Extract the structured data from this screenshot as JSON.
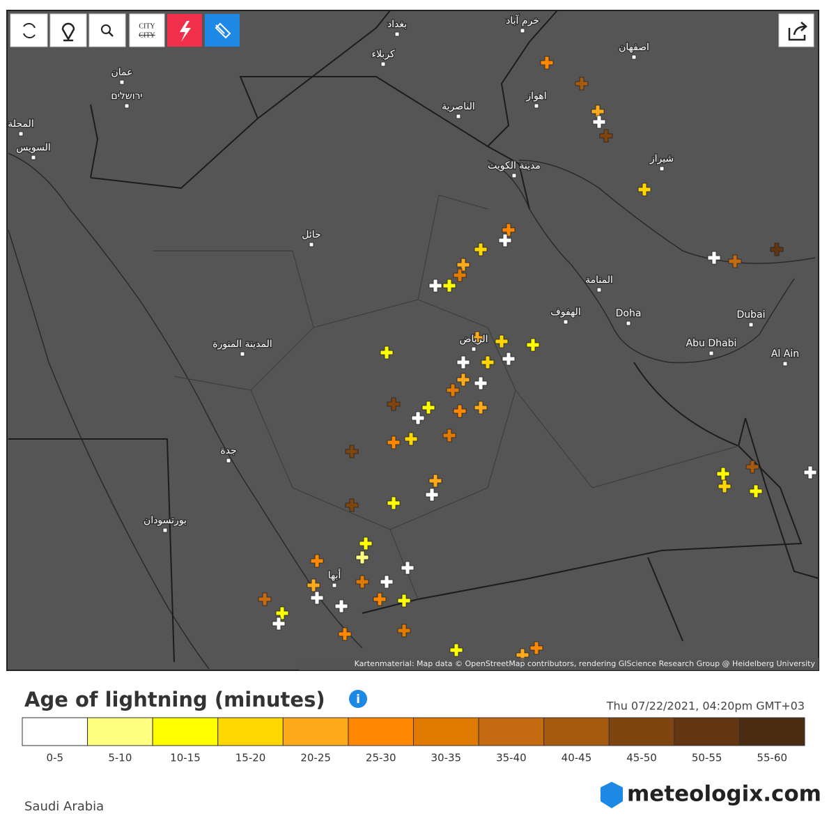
{
  "toolbar": {
    "city_label": "CITY"
  },
  "map": {
    "labels": [
      "بغداد",
      "كربلاء",
      "عمان",
      "ירושלים",
      "الناصرية",
      "خرم آباد",
      "اصفهان",
      "اهواز",
      "شيراز",
      "مدينة الكويت",
      "حائل",
      "المنامة",
      "الهفوف",
      "Doha",
      "Dubai",
      "Abu Dhabi",
      "Al Ain",
      "الرياض",
      "المدينة المنورة",
      "جدة",
      "بورتسودان",
      "أبها",
      "السويس",
      "المحلة"
    ],
    "attribution": "Kartenmaterial: Map data © OpenStreetMap contributors, rendering GIScience Research Group @ Heidelberg University"
  },
  "legend": {
    "title": "Age of lightning (minutes)",
    "timestamp": "Thu 07/22/2021, 04:20pm GMT+03",
    "bins": [
      {
        "label": "0-5",
        "color": "#ffffff"
      },
      {
        "label": "5-10",
        "color": "#ffff80"
      },
      {
        "label": "10-15",
        "color": "#ffff00"
      },
      {
        "label": "15-20",
        "color": "#ffd700"
      },
      {
        "label": "20-25",
        "color": "#ffaa1a"
      },
      {
        "label": "25-30",
        "color": "#ff8800"
      },
      {
        "label": "30-35",
        "color": "#e07a00"
      },
      {
        "label": "35-40",
        "color": "#c46a10"
      },
      {
        "label": "40-45",
        "color": "#a65a10"
      },
      {
        "label": "45-50",
        "color": "#7f4510"
      },
      {
        "label": "50-55",
        "color": "#633510"
      },
      {
        "label": "55-60",
        "color": "#4a2c10"
      }
    ]
  },
  "footer": {
    "region": "Saudi Arabia",
    "brand": "meteologix.com"
  }
}
